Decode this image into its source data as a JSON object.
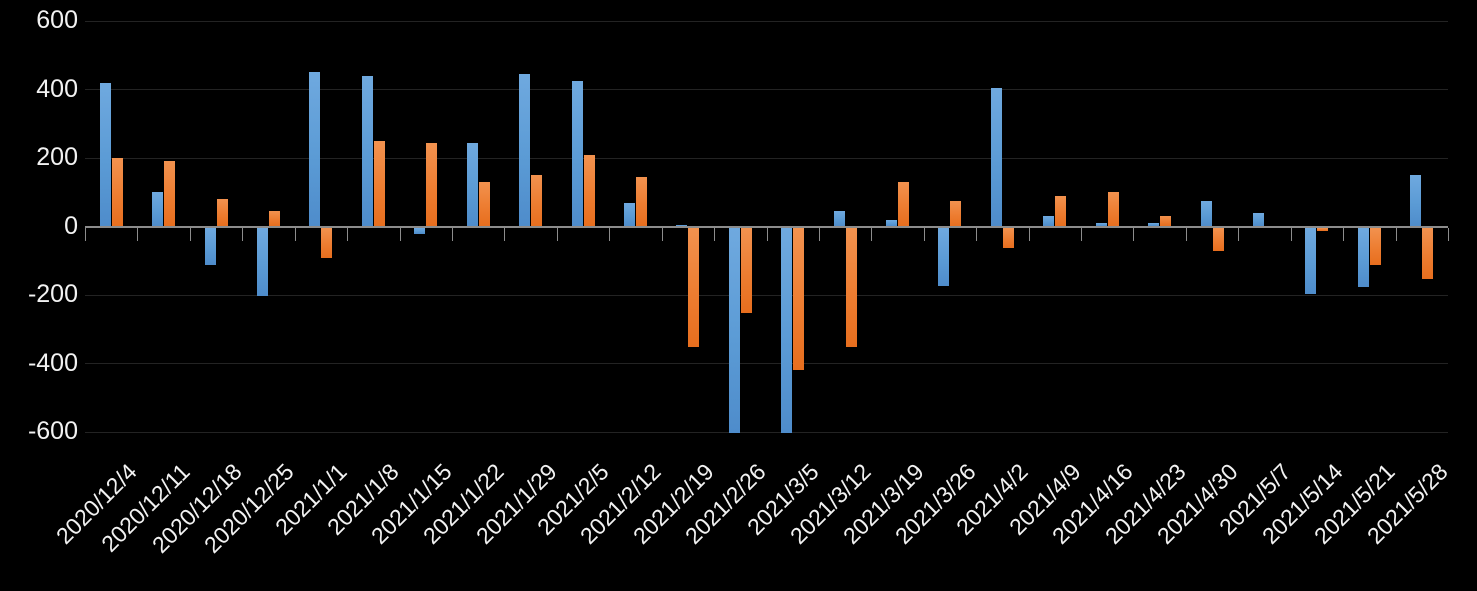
{
  "chart_data": {
    "type": "bar",
    "title": "",
    "legend": "none",
    "grid": true,
    "background": "#000000",
    "grid_color": "#232323",
    "axis_color": "#8c8c8c",
    "label_color": "#f2f2f2",
    "ylim": [
      -600,
      600
    ],
    "ytick_step": 200,
    "ytick_labels": [
      "600",
      "400",
      "200",
      "0",
      "-200",
      "-400",
      "-600"
    ],
    "categories": [
      "2020/12/4",
      "2020/12/11",
      "2020/12/18",
      "2020/12/25",
      "2021/1/1",
      "2021/1/8",
      "2021/1/15",
      "2021/1/22",
      "2021/1/29",
      "2021/2/5",
      "2021/2/12",
      "2021/2/19",
      "2021/2/26",
      "2021/3/5",
      "2021/3/12",
      "2021/3/19",
      "2021/3/26",
      "2021/4/2",
      "2021/4/9",
      "2021/4/16",
      "2021/4/23",
      "2021/4/30",
      "2021/5/7",
      "2021/5/14",
      "2021/5/21",
      "2021/5/28"
    ],
    "series": [
      {
        "name": "blue-series",
        "color": "#5B9BD5",
        "color_top": "#6FA9DF",
        "color_bottom": "#4E8CCB",
        "values": [
          420,
          100,
          -110,
          -200,
          450,
          440,
          -20,
          245,
          445,
          425,
          70,
          5,
          -600,
          -600,
          45,
          20,
          -170,
          405,
          30,
          10,
          10,
          75,
          40,
          -195,
          -175,
          150
        ]
      },
      {
        "name": "orange-series",
        "color": "#ED7D31",
        "color_top": "#F2924F",
        "color_bottom": "#E76E1E",
        "values": [
          200,
          190,
          80,
          45,
          -90,
          250,
          245,
          130,
          150,
          210,
          145,
          -350,
          -250,
          -415,
          -350,
          130,
          75,
          -60,
          90,
          100,
          30,
          -70,
          0,
          -10,
          -110,
          -150
        ]
      }
    ]
  },
  "layout_note": ""
}
